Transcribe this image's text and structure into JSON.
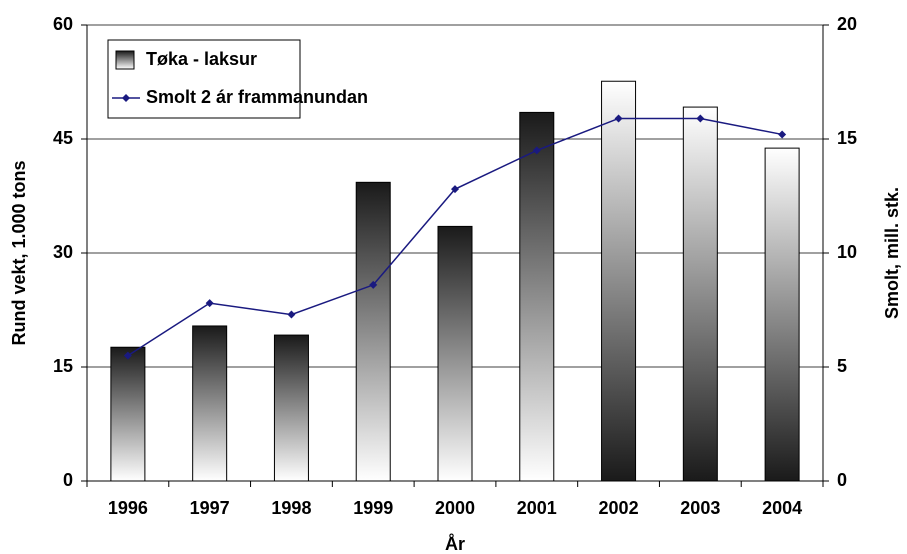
{
  "chart_data": {
    "type": "bar-line",
    "x_label": "År",
    "y_label": "Rund vekt, 1.000 tons",
    "y2_label": "Smolt, mill. stk.",
    "categories": [
      "1996",
      "1997",
      "1998",
      "1999",
      "2000",
      "2001",
      "2002",
      "2003",
      "2004"
    ],
    "series": [
      {
        "name": "Tøka - laksur",
        "type": "bar",
        "color": "#000000",
        "gradients": [
          "dark-top",
          "dark-top",
          "dark-top",
          "dark-top",
          "dark-top",
          "dark-top",
          "dark-bottom",
          "dark-bottom",
          "dark-bottom"
        ],
        "values": [
          17.6,
          20.4,
          19.2,
          39.3,
          33.5,
          48.5,
          52.6,
          49.2,
          43.8
        ]
      },
      {
        "name": "Smolt 2 ár frammanundan",
        "type": "line",
        "axis": "y2",
        "color": "#1a1a80",
        "values": [
          5.5,
          7.8,
          7.3,
          8.6,
          12.8,
          14.5,
          15.9,
          15.9,
          15.2
        ]
      }
    ],
    "ylim": [
      0,
      60
    ],
    "yticks": [
      0,
      15,
      30,
      45,
      60
    ],
    "y2lim": [
      0,
      20
    ],
    "y2ticks": [
      0,
      5,
      10,
      15,
      20
    ],
    "grid": true,
    "legend": "top-left"
  }
}
